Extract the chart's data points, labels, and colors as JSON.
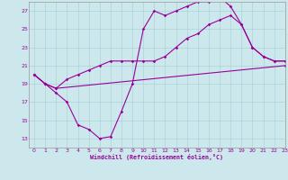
{
  "background_color": "#cce8ec",
  "grid_color": "#aad4da",
  "line_color": "#990099",
  "xlabel": "Windchill (Refroidissement éolien,°C)",
  "xlim": [
    -0.5,
    23
  ],
  "ylim": [
    12,
    28
  ],
  "yticks": [
    13,
    15,
    17,
    19,
    21,
    23,
    25,
    27
  ],
  "xticks": [
    0,
    1,
    2,
    3,
    4,
    5,
    6,
    7,
    8,
    9,
    10,
    11,
    12,
    13,
    14,
    15,
    16,
    17,
    18,
    19,
    20,
    21,
    22,
    23
  ],
  "series": [
    {
      "x": [
        0,
        1,
        2,
        3,
        4,
        5,
        6,
        7,
        8,
        9,
        10,
        11,
        12,
        13,
        14,
        15,
        16,
        17,
        18,
        19,
        20,
        21,
        22,
        23
      ],
      "y": [
        20.0,
        19.0,
        18.0,
        17.0,
        14.5,
        14.0,
        13.0,
        13.2,
        16.0,
        19.0,
        25.0,
        27.0,
        26.5,
        27.0,
        27.5,
        28.0,
        28.0,
        28.5,
        27.5,
        25.5,
        23.0,
        22.0,
        21.5,
        21.5
      ]
    },
    {
      "x": [
        0,
        1,
        2,
        23
      ],
      "y": [
        20.0,
        19.0,
        18.5,
        21.0
      ]
    },
    {
      "x": [
        0,
        1,
        2,
        3,
        4,
        5,
        6,
        7,
        8,
        9,
        10,
        11,
        12,
        13,
        14,
        15,
        16,
        17,
        18,
        19,
        20,
        21,
        22,
        23
      ],
      "y": [
        20.0,
        19.0,
        18.5,
        19.5,
        20.0,
        20.5,
        21.0,
        21.5,
        21.5,
        21.5,
        21.5,
        21.5,
        22.0,
        23.0,
        24.0,
        24.5,
        25.5,
        26.0,
        26.5,
        25.5,
        23.0,
        22.0,
        21.5,
        21.5
      ]
    }
  ]
}
